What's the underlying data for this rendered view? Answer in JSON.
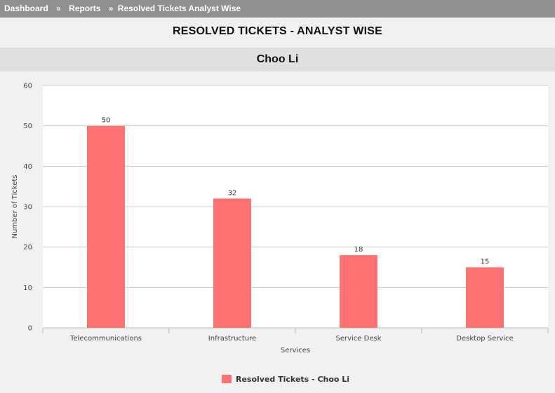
{
  "breadcrumb": {
    "items": [
      "Dashboard",
      "Reports",
      "Resolved Tickets Analyst Wise"
    ],
    "separator": "»"
  },
  "page": {
    "title": "RESOLVED TICKETS - ANALYST WISE",
    "analyst": "Choo Li"
  },
  "colors": {
    "bar": "#ff7272",
    "grid": "#cccccc",
    "plot_background": "#ffffff",
    "header_bar": "#8f8f8f",
    "analyst_bar": "#e0e0e0"
  },
  "chart_data": {
    "type": "bar",
    "categories": [
      "Telecommunications",
      "Infrastructure",
      "Service Desk",
      "Desktop Service"
    ],
    "series": [
      {
        "name": "Resolved Tickets - Choo Li",
        "values": [
          50,
          32,
          18,
          15
        ]
      }
    ],
    "xlabel": "Services",
    "ylabel": "Number of Tickets",
    "ylim": [
      0,
      60
    ],
    "yticks": [
      0,
      10,
      20,
      30,
      40,
      50,
      60
    ],
    "grid": true,
    "data_labels": true,
    "legend_position": "bottom-center"
  }
}
